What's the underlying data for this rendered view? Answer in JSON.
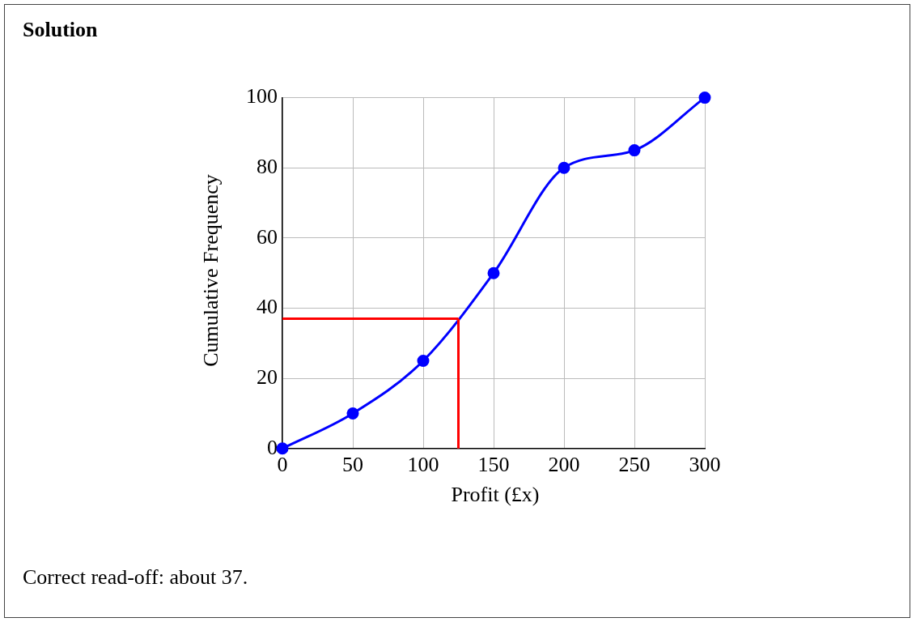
{
  "chart_data": {
    "type": "line",
    "title": "Solution",
    "xlabel": "Profit (£x)",
    "ylabel": "Cumulative Frequency",
    "x": [
      0,
      50,
      100,
      150,
      200,
      250,
      300
    ],
    "series": [
      {
        "color": "#0000ff",
        "values": [
          0,
          10,
          25,
          50,
          80,
          85,
          100
        ],
        "marker": "circle"
      }
    ],
    "ref_lines": [
      {
        "axis": "y",
        "value": 37,
        "color": "#ff0000"
      },
      {
        "axis": "x",
        "value": 125,
        "color": "#ff0000"
      }
    ],
    "xlim": [
      0,
      300
    ],
    "xticks": [
      0,
      50,
      100,
      150,
      200,
      250,
      300
    ],
    "ylim": [
      0,
      100
    ],
    "yticks": [
      0,
      20,
      40,
      60,
      80,
      100
    ],
    "grid": true,
    "legend": false,
    "line_style": "solid",
    "annotations": [
      "Correct read-off: about 37."
    ]
  }
}
